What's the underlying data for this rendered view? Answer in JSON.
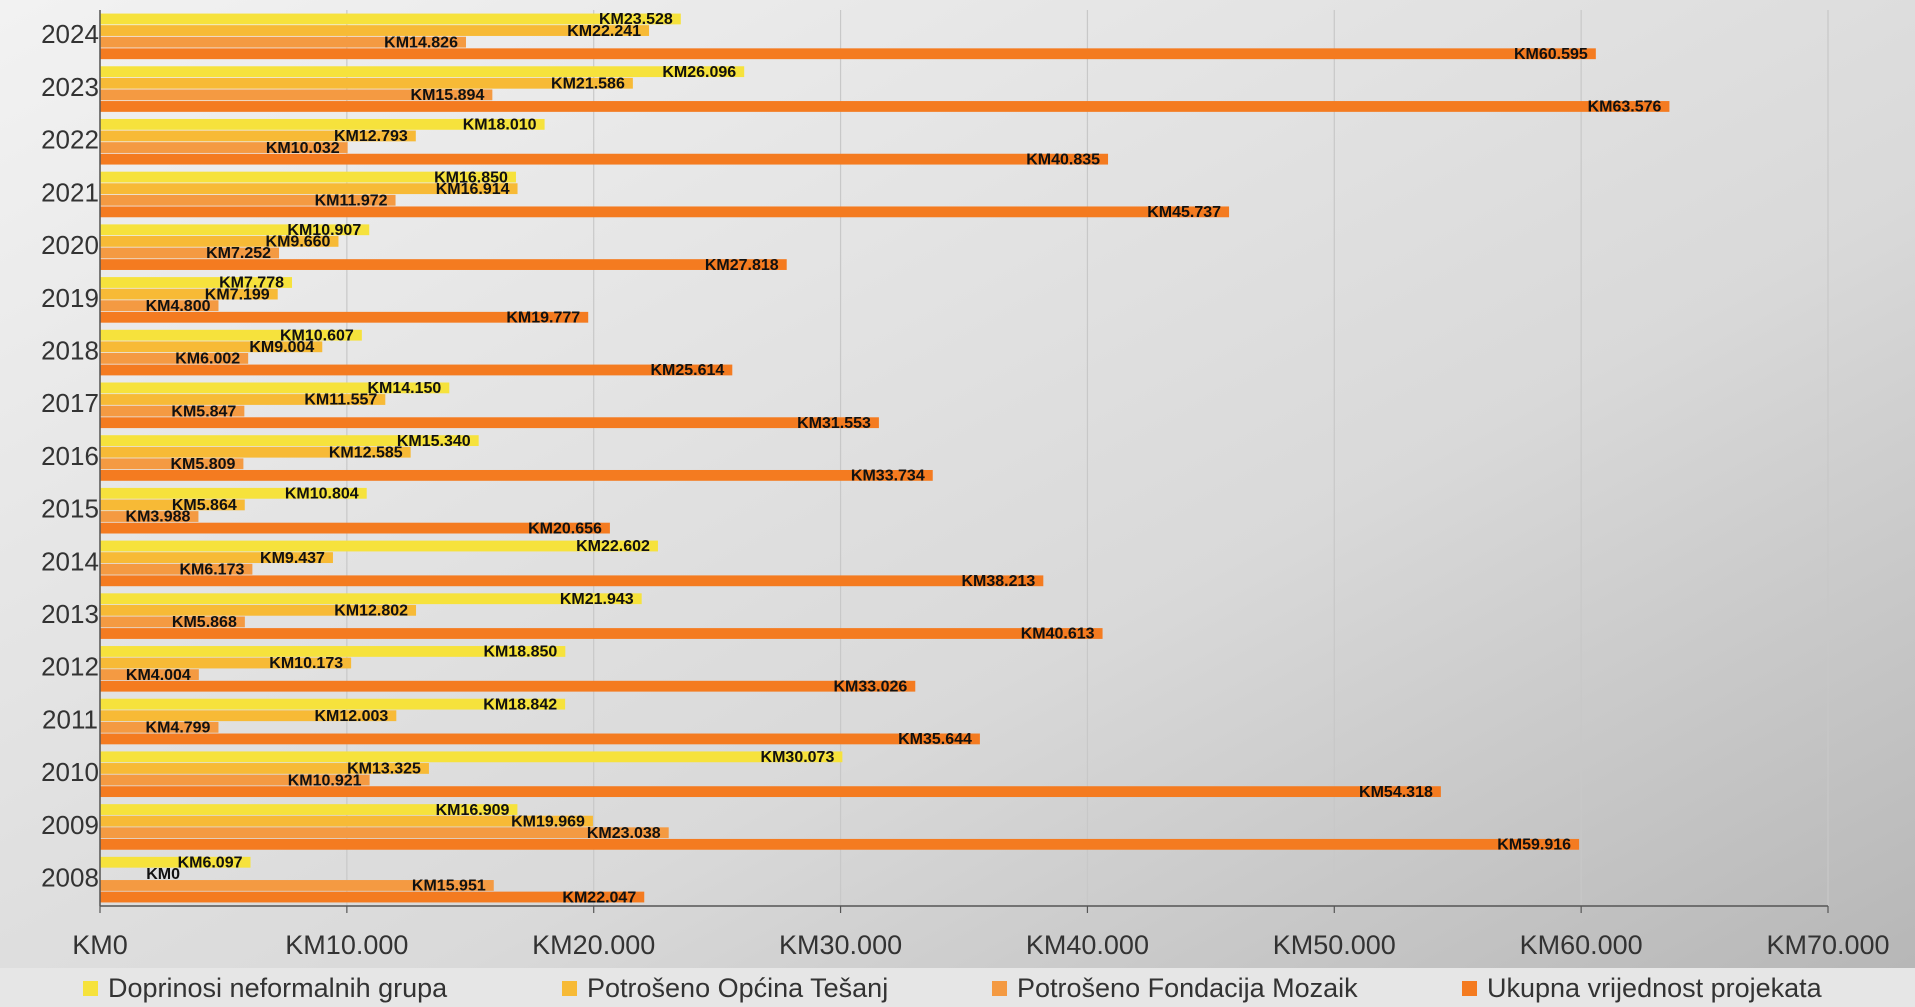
{
  "chart_data": {
    "type": "hbar",
    "categories": [
      "2008",
      "2009",
      "2010",
      "2011",
      "2012",
      "2013",
      "2014",
      "2015",
      "2016",
      "2017",
      "2018",
      "2019",
      "2020",
      "2021",
      "2022",
      "2023",
      "2024"
    ],
    "series": [
      {
        "name": "Doprinosi neformalnih grupa",
        "color": "#f6e23c",
        "values": [
          6097,
          16909,
          30073,
          18842,
          18850,
          21943,
          22602,
          10804,
          15340,
          14150,
          10607,
          7778,
          10907,
          16850,
          18010,
          26096,
          23528
        ],
        "value_labels": [
          "KM6.097",
          "KM16.909",
          "KM30.073",
          "KM18.842",
          "KM18.850",
          "KM21.943",
          "KM22.602",
          "KM10.804",
          "KM15.340",
          "KM14.150",
          "KM10.607",
          "KM7.778",
          "KM10.907",
          "KM16.850",
          "KM18.010",
          "KM26.096",
          "KM23.528"
        ]
      },
      {
        "name": "Potrošeno Općina Tešanj",
        "color": "#f7ba36",
        "values": [
          0,
          19969,
          13325,
          12003,
          10173,
          12802,
          9437,
          5864,
          12585,
          11557,
          9004,
          7199,
          9660,
          16914,
          12793,
          21586,
          22241
        ],
        "value_labels": [
          "KM0",
          "KM19.969",
          "KM13.325",
          "KM12.003",
          "KM10.173",
          "KM12.802",
          "KM9.437",
          "KM5.864",
          "KM12.585",
          "KM11.557",
          "KM9.004",
          "KM7.199",
          "KM9.660",
          "KM16.914",
          "KM12.793",
          "KM21.586",
          "KM22.241"
        ]
      },
      {
        "name": "Potrošeno Fondacija Mozaik",
        "color": "#f49a42",
        "values": [
          15951,
          23038,
          10921,
          4799,
          4004,
          5868,
          6173,
          3988,
          5809,
          5847,
          6002,
          4800,
          7252,
          11972,
          10032,
          15894,
          14826
        ],
        "value_labels": [
          "KM15.951",
          "KM23.038",
          "KM10.921",
          "KM4.799",
          "KM4.004",
          "KM5.868",
          "KM6.173",
          "KM3.988",
          "KM5.809",
          "KM5.847",
          "KM6.002",
          "KM4.800",
          "KM7.252",
          "KM11.972",
          "KM10.032",
          "KM15.894",
          "KM14.826"
        ]
      },
      {
        "name": "Ukupna vrijednost projekata",
        "color": "#f47b20",
        "values": [
          22047,
          59916,
          54318,
          35644,
          33026,
          40613,
          38213,
          20656,
          33734,
          31553,
          25614,
          19777,
          27818,
          45737,
          40835,
          63576,
          60595
        ],
        "value_labels": [
          "KM22.047",
          "KM59.916",
          "KM54.318",
          "KM35.644",
          "KM33.026",
          "KM40.613",
          "KM38.213",
          "KM20.656",
          "KM33.734",
          "KM31.553",
          "KM25.614",
          "KM19.777",
          "KM27.818",
          "KM45.737",
          "KM40.835",
          "KM63.576",
          "KM60.595"
        ]
      }
    ],
    "xlim": [
      0,
      70000
    ],
    "xticks": [
      {
        "value": 0,
        "label": "KM0"
      },
      {
        "value": 10000,
        "label": "KM10.000"
      },
      {
        "value": 20000,
        "label": "KM20.000"
      },
      {
        "value": 30000,
        "label": "KM30.000"
      },
      {
        "value": 40000,
        "label": "KM40.000"
      },
      {
        "value": 50000,
        "label": "KM50.000"
      },
      {
        "value": 60000,
        "label": "KM60.000"
      },
      {
        "value": 70000,
        "label": "KM70.000"
      }
    ],
    "grid": true,
    "legend": "bottom"
  }
}
